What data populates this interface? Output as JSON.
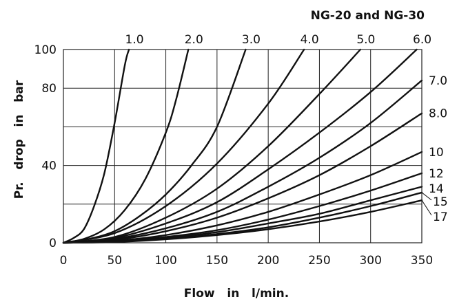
{
  "chart_data": {
    "type": "line",
    "title": "NG-20 and NG-30",
    "xlabel": "Flow   in   l/min.",
    "ylabel": "Pr.   drop   in   bar",
    "xlim": [
      0,
      350
    ],
    "ylim": [
      0,
      100
    ],
    "x_ticks": [
      0,
      50,
      100,
      150,
      200,
      250,
      300,
      350
    ],
    "x_tick_labels": [
      "0",
      "50",
      "100",
      "150",
      "200",
      "250",
      "300",
      "350"
    ],
    "y_ticks": [
      0,
      40,
      80,
      100
    ],
    "y_tick_labels": [
      "0",
      "40",
      "80",
      "100"
    ],
    "x_grid": [
      0,
      50,
      100,
      150,
      200,
      250,
      300,
      350
    ],
    "y_grid": [
      0,
      20,
      40,
      60,
      80,
      100
    ],
    "grid": true,
    "series": [
      {
        "name": "1.0",
        "x": [
          0,
          10,
          20,
          30,
          40,
          50,
          60,
          64
        ],
        "y": [
          0,
          2.5,
          7,
          19,
          36,
          62,
          92,
          100
        ]
      },
      {
        "name": "2.0",
        "x": [
          0,
          20,
          40,
          60,
          80,
          100,
          110,
          122
        ],
        "y": [
          0,
          2,
          7,
          17,
          33,
          57,
          74,
          100
        ]
      },
      {
        "name": "3.0",
        "x": [
          0,
          25,
          50,
          75,
          100,
          125,
          150,
          178
        ],
        "y": [
          0,
          2,
          6,
          14,
          25,
          40,
          60,
          100
        ]
      },
      {
        "name": "4.0",
        "x": [
          0,
          50,
          100,
          150,
          200,
          235
        ],
        "y": [
          0,
          5,
          19,
          41,
          72,
          100
        ]
      },
      {
        "name": "5.0",
        "x": [
          0,
          50,
          100,
          150,
          200,
          250,
          290
        ],
        "y": [
          0,
          3,
          13,
          28,
          50,
          77,
          100
        ]
      },
      {
        "name": "6.0",
        "x": [
          0,
          50,
          100,
          150,
          200,
          250,
          300,
          345
        ],
        "y": [
          0,
          2.5,
          10,
          21,
          38,
          57,
          78,
          100
        ]
      },
      {
        "name": "7.0",
        "x": [
          0,
          50,
          100,
          150,
          200,
          250,
          300,
          350
        ],
        "y": [
          0,
          2,
          7.5,
          16,
          29,
          44,
          62,
          84
        ]
      },
      {
        "name": "8.0",
        "x": [
          0,
          50,
          100,
          150,
          200,
          250,
          300,
          350
        ],
        "y": [
          0,
          1.5,
          6,
          13,
          23,
          35,
          50,
          67
        ]
      },
      {
        "name": "10",
        "x": [
          0,
          50,
          100,
          150,
          200,
          250,
          300,
          350
        ],
        "y": [
          0,
          1,
          4,
          9,
          16,
          25,
          35,
          47
        ]
      },
      {
        "name": "12",
        "x": [
          0,
          50,
          100,
          150,
          200,
          250,
          300,
          350
        ],
        "y": [
          0,
          0.8,
          3,
          6.5,
          12,
          19,
          27,
          36
        ]
      },
      {
        "name": "14",
        "x": [
          0,
          50,
          100,
          150,
          200,
          250,
          300,
          350
        ],
        "y": [
          0,
          0.6,
          2.5,
          5.5,
          10,
          15,
          22,
          29
        ]
      },
      {
        "name": "15",
        "x": [
          0,
          50,
          100,
          150,
          200,
          250,
          300,
          350
        ],
        "y": [
          0,
          0.5,
          2,
          4.5,
          8,
          13,
          19,
          26
        ]
      },
      {
        "name": "17",
        "x": [
          0,
          50,
          100,
          150,
          200,
          250,
          300,
          350
        ],
        "y": [
          0,
          0.4,
          1.8,
          4,
          7,
          11,
          16,
          22
        ]
      }
    ]
  }
}
